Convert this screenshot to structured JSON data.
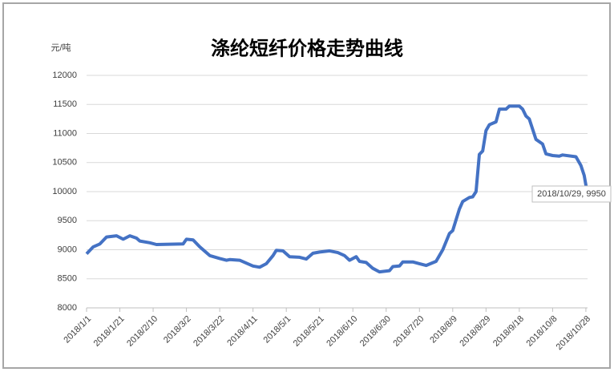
{
  "chart_data": {
    "type": "line",
    "title": "涤纶短纤价格走势曲线",
    "y_label": "元/吨",
    "x": [
      "2018/1/1",
      "2018/1/5",
      "2018/1/9",
      "2018/1/13",
      "2018/1/19",
      "2018/1/23",
      "2018/1/27",
      "2018/1/31",
      "2018/2/2",
      "2018/2/8",
      "2018/2/12",
      "2018/2/28",
      "2018/3/2",
      "2018/3/6",
      "2018/3/10",
      "2018/3/16",
      "2018/3/22",
      "2018/3/26",
      "2018/3/28",
      "2018/4/3",
      "2018/4/7",
      "2018/4/11",
      "2018/4/15",
      "2018/4/19",
      "2018/4/23",
      "2018/4/25",
      "2018/4/29",
      "2018/5/3",
      "2018/5/9",
      "2018/5/13",
      "2018/5/17",
      "2018/5/21",
      "2018/5/27",
      "2018/6/1",
      "2018/6/5",
      "2018/6/8",
      "2018/6/12",
      "2018/6/14",
      "2018/6/18",
      "2018/6/22",
      "2018/6/26",
      "2018/7/2",
      "2018/7/4",
      "2018/7/8",
      "2018/7/10",
      "2018/7/16",
      "2018/7/20",
      "2018/7/24",
      "2018/7/30",
      "2018/8/3",
      "2018/8/7",
      "2018/8/9",
      "2018/8/13",
      "2018/8/15",
      "2018/8/19",
      "2018/8/21",
      "2018/8/23",
      "2018/8/25",
      "2018/8/27",
      "2018/8/29",
      "2018/8/31",
      "2018/9/4",
      "2018/9/6",
      "2018/9/10",
      "2018/9/12",
      "2018/9/18",
      "2018/9/20",
      "2018/9/22",
      "2018/9/24",
      "2018/9/28",
      "2018/10/2",
      "2018/10/4",
      "2018/10/8",
      "2018/10/12",
      "2018/10/14",
      "2018/10/22",
      "2018/10/25",
      "2018/10/27",
      "2018/10/29"
    ],
    "series": [
      {
        "name": "涤纶短纤",
        "color": "#4472c4",
        "values": [
          8930,
          9050,
          9100,
          9220,
          9240,
          9180,
          9240,
          9200,
          9150,
          9120,
          9090,
          9100,
          9180,
          9170,
          9050,
          8900,
          8850,
          8820,
          8830,
          8820,
          8770,
          8720,
          8700,
          8760,
          8900,
          8990,
          8980,
          8880,
          8870,
          8840,
          8940,
          8960,
          8980,
          8950,
          8900,
          8820,
          8880,
          8800,
          8780,
          8680,
          8620,
          8640,
          8710,
          8720,
          8790,
          8790,
          8760,
          8730,
          8800,
          9000,
          9280,
          9330,
          9700,
          9830,
          9900,
          9910,
          10000,
          10640,
          10700,
          11050,
          11150,
          11200,
          11420,
          11420,
          11470,
          11470,
          11420,
          11300,
          11250,
          10900,
          10820,
          10650,
          10620,
          10610,
          10630,
          10600,
          10450,
          10280,
          9950
        ]
      }
    ],
    "annotation": "2018/10/29, 9950",
    "xlim": [
      "2018/1/1",
      "2018/10/29"
    ],
    "xticks": [
      "2018/1/1",
      "2018/1/21",
      "2018/2/10",
      "2018/3/2",
      "2018/3/22",
      "2018/4/11",
      "2018/5/1",
      "2018/5/21",
      "2018/6/10",
      "2018/6/30",
      "2018/7/20",
      "2018/8/9",
      "2018/8/29",
      "2018/9/18",
      "2018/10/8",
      "2018/10/28"
    ],
    "ylim": [
      8000,
      12000
    ],
    "yticks": [
      8000,
      8500,
      9000,
      9500,
      10000,
      10500,
      11000,
      11500,
      12000
    ],
    "grid": true
  }
}
